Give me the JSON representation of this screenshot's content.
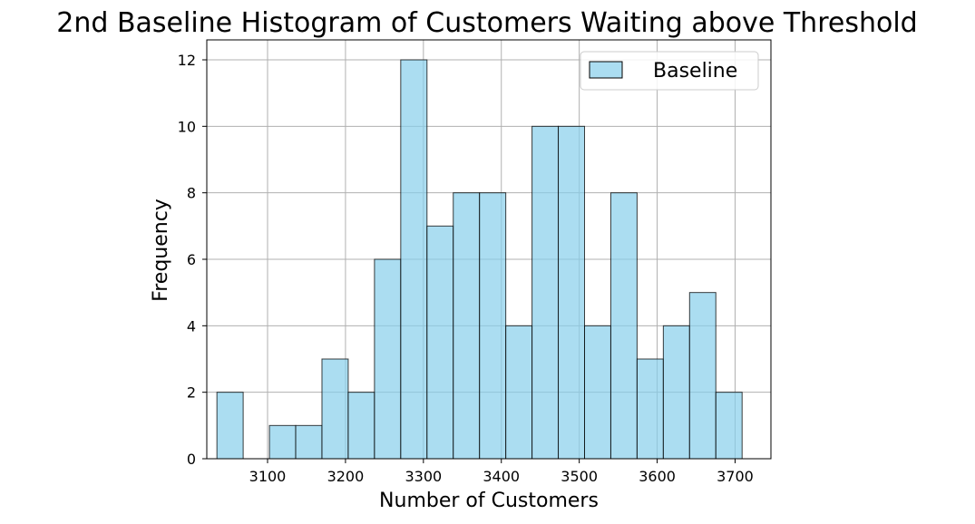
{
  "chart_data": {
    "type": "bar",
    "title": "2nd Baseline Histogram of Customers Waiting above Threshold",
    "xlabel": "Number of Customers",
    "ylabel": "Frequency",
    "xlim": [
      3022,
      3746
    ],
    "ylim": [
      0,
      12.6
    ],
    "xticks": [
      3100,
      3200,
      3300,
      3400,
      3500,
      3600,
      3700
    ],
    "yticks": [
      0,
      2,
      4,
      6,
      8,
      10,
      12
    ],
    "grid": true,
    "legend": {
      "position": "top-right",
      "entries": [
        "Baseline"
      ]
    },
    "bin_edges": [
      3035,
      3068.7,
      3102.4,
      3136.1,
      3169.8,
      3203.5,
      3237.2,
      3270.9,
      3304.6,
      3338.3,
      3372.0,
      3405.7,
      3439.4,
      3473.1,
      3506.8,
      3540.5,
      3574.2,
      3607.9,
      3641.6,
      3675.3,
      3709.0
    ],
    "series": [
      {
        "name": "Baseline",
        "values": [
          2,
          0,
          1,
          1,
          3,
          2,
          6,
          12,
          7,
          8,
          8,
          4,
          10,
          10,
          4,
          8,
          3,
          4,
          5,
          2
        ]
      }
    ],
    "colors": {
      "bar_fill": "#87ceeb",
      "bar_edge": "#000000",
      "grid": "#b0b0b0"
    }
  }
}
